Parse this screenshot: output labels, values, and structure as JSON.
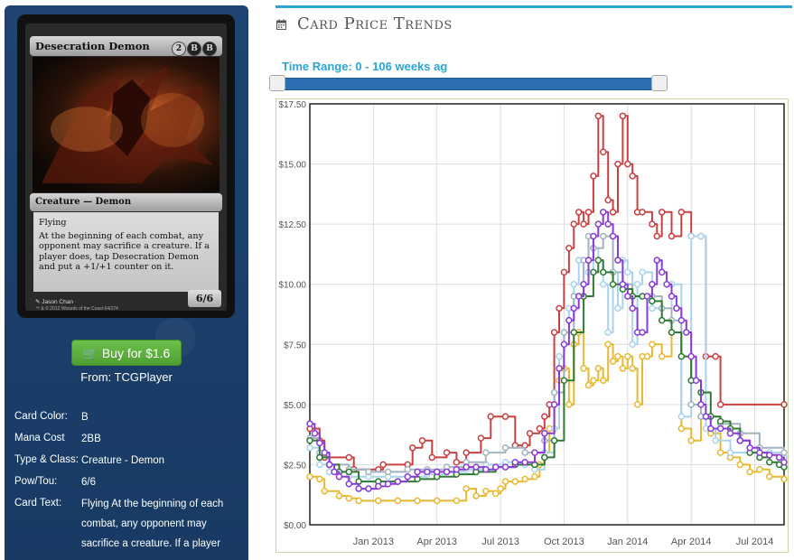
{
  "card": {
    "name": "Desecration Demon",
    "mana_symbols": [
      "2",
      "B",
      "B"
    ],
    "type_line": "Creature — Demon",
    "rules_text": [
      "Flying",
      "At the beginning of each combat, any opponent may sacrifice a creature. If a player does, tap Desecration Demon and put a +1/+1 counter on it."
    ],
    "power_toughness": "6/6",
    "artist": "Jason Chan",
    "copyright": "™ & © 2012 Wizards of the Coast 64/274"
  },
  "buy": {
    "label": "Buy for $1.6",
    "from": "From: TCGPlayer"
  },
  "info": [
    {
      "key": "Card Color:",
      "value": "B"
    },
    {
      "key": "Mana Cost",
      "value": "2BB"
    },
    {
      "key": "Type & Class:",
      "value": "Creature - Demon"
    },
    {
      "key": "Pow/Tou:",
      "value": "6/6"
    },
    {
      "key": "Card Text:",
      "value": "Flying At the beginning of each combat, any opponent may sacrifice a creature. If a player"
    }
  ],
  "section_title": "Card Price Trends",
  "time_range": {
    "label": "Time Range: 0 - 106 weeks ag",
    "min_weeks": 0,
    "max_weeks": 106
  },
  "chart_data": {
    "type": "line",
    "title": "",
    "xlabel": "",
    "ylabel": "",
    "ylim": [
      0,
      17.5
    ],
    "y_ticks": [
      "$0.00",
      "$2.50",
      "$5.00",
      "$7.50",
      "$10.00",
      "$12.50",
      "$15.00",
      "$17.50"
    ],
    "y_tick_values": [
      0,
      2.5,
      5,
      7.5,
      10,
      12.5,
      15,
      17.5
    ],
    "x_ticks": [
      "Jan 2013",
      "Apr 2013",
      "Jul 2013",
      "Oct 2013",
      "Jan 2014",
      "Apr 2014",
      "Jul 2014"
    ],
    "x_tick_weeks": [
      13,
      26,
      39,
      52,
      65,
      78,
      91
    ],
    "xlim_weeks": [
      0,
      97
    ],
    "grid": true,
    "colors": {
      "red": "#c94040",
      "yellow": "#e8b830",
      "lightblue": "#a8d4ee",
      "gray": "#9fb4c0",
      "green": "#2e7a32",
      "purple": "#8a3ad8"
    },
    "series": [
      {
        "color": "red",
        "points": [
          [
            0,
            4.0
          ],
          [
            2,
            3.5
          ],
          [
            3,
            2.8
          ],
          [
            8,
            2.8
          ],
          [
            9,
            2.3
          ],
          [
            14,
            2.3
          ],
          [
            15,
            2.5
          ],
          [
            20,
            2.5
          ],
          [
            21,
            3.2
          ],
          [
            23,
            3.5
          ],
          [
            25,
            2.8
          ],
          [
            28,
            3.0
          ],
          [
            30,
            2.6
          ],
          [
            32,
            3.0
          ],
          [
            35,
            3.6
          ],
          [
            37,
            4.5
          ],
          [
            40,
            4.5
          ],
          [
            42,
            3.3
          ],
          [
            44,
            3.3
          ],
          [
            45,
            3.8
          ],
          [
            47,
            4.0
          ],
          [
            48,
            4.5
          ],
          [
            49,
            5.0
          ],
          [
            50,
            8.0
          ],
          [
            51,
            9.0
          ],
          [
            52,
            10.5
          ],
          [
            53,
            11.5
          ],
          [
            54,
            12.5
          ],
          [
            55,
            13.0
          ],
          [
            56,
            12.5
          ],
          [
            57,
            13.0
          ],
          [
            58,
            14.5
          ],
          [
            59,
            17.0
          ],
          [
            60,
            15.5
          ],
          [
            61,
            13.5
          ],
          [
            62,
            13.0
          ],
          [
            63,
            15.0
          ],
          [
            64,
            17.0
          ],
          [
            65,
            15.0
          ],
          [
            66,
            14.5
          ],
          [
            67,
            13.0
          ],
          [
            68,
            13.0
          ],
          [
            70,
            12.5
          ],
          [
            71,
            12.0
          ],
          [
            72,
            13.0
          ],
          [
            74,
            12.0
          ],
          [
            76,
            13.0
          ],
          [
            78,
            12.0
          ],
          [
            80,
            12.0
          ],
          [
            81,
            7.0
          ],
          [
            83,
            7.0
          ],
          [
            84,
            5.0
          ],
          [
            97,
            5.0
          ]
        ]
      },
      {
        "color": "yellow",
        "points": [
          [
            0,
            2.0
          ],
          [
            2,
            1.9
          ],
          [
            3,
            1.4
          ],
          [
            6,
            1.2
          ],
          [
            8,
            1.1
          ],
          [
            10,
            1.0
          ],
          [
            14,
            1.0
          ],
          [
            18,
            1.0
          ],
          [
            22,
            1.0
          ],
          [
            26,
            1.0
          ],
          [
            30,
            1.0
          ],
          [
            32,
            1.5
          ],
          [
            34,
            1.2
          ],
          [
            36,
            1.4
          ],
          [
            38,
            1.3
          ],
          [
            39,
            1.5
          ],
          [
            40,
            1.8
          ],
          [
            42,
            1.8
          ],
          [
            44,
            1.9
          ],
          [
            46,
            2.0
          ],
          [
            47,
            2.5
          ],
          [
            48,
            3.0
          ],
          [
            49,
            4.0
          ],
          [
            50,
            5.0
          ],
          [
            51,
            6.0
          ],
          [
            52,
            6.5
          ],
          [
            53,
            5.0
          ],
          [
            54,
            7.5
          ],
          [
            55,
            8.0
          ],
          [
            56,
            6.5
          ],
          [
            57,
            5.8
          ],
          [
            58,
            6.0
          ],
          [
            59,
            6.5
          ],
          [
            60,
            6.0
          ],
          [
            61,
            7.5
          ],
          [
            62,
            6.8
          ],
          [
            63,
            7.0
          ],
          [
            64,
            6.5
          ],
          [
            65,
            7.0
          ],
          [
            66,
            6.5
          ],
          [
            67,
            5.0
          ],
          [
            68,
            7.0
          ],
          [
            69,
            7.0
          ],
          [
            70,
            7.5
          ],
          [
            72,
            7.0
          ],
          [
            74,
            8.0
          ],
          [
            76,
            4.0
          ],
          [
            78,
            3.5
          ],
          [
            80,
            4.5
          ],
          [
            82,
            3.8
          ],
          [
            84,
            3.0
          ],
          [
            86,
            2.8
          ],
          [
            88,
            2.5
          ],
          [
            90,
            2.2
          ],
          [
            92,
            2.3
          ],
          [
            94,
            2.0
          ],
          [
            97,
            1.9
          ]
        ]
      },
      {
        "color": "lightblue",
        "points": [
          [
            0,
            3.2
          ],
          [
            2,
            2.5
          ],
          [
            4,
            2.2
          ],
          [
            8,
            2.0
          ],
          [
            12,
            2.0
          ],
          [
            16,
            2.0
          ],
          [
            20,
            2.0
          ],
          [
            24,
            2.1
          ],
          [
            28,
            2.2
          ],
          [
            32,
            2.3
          ],
          [
            36,
            2.5
          ],
          [
            40,
            2.6
          ],
          [
            44,
            2.5
          ],
          [
            46,
            2.3
          ],
          [
            48,
            3.0
          ],
          [
            50,
            4.0
          ],
          [
            51,
            7.0
          ],
          [
            52,
            8.0
          ],
          [
            53,
            9.0
          ],
          [
            54,
            10.0
          ],
          [
            55,
            11.0
          ],
          [
            56,
            10.0
          ],
          [
            57,
            10.5
          ],
          [
            58,
            11.5
          ],
          [
            59,
            11.0
          ],
          [
            60,
            10.0
          ],
          [
            61,
            8.0
          ],
          [
            62,
            10.5
          ],
          [
            63,
            9.0
          ],
          [
            64,
            11.0
          ],
          [
            65,
            10.5
          ],
          [
            66,
            7.5
          ],
          [
            67,
            10.0
          ],
          [
            68,
            10.5
          ],
          [
            70,
            9.0
          ],
          [
            72,
            8.5
          ],
          [
            74,
            10.0
          ],
          [
            76,
            4.5
          ],
          [
            78,
            12.0
          ],
          [
            80,
            12.0
          ],
          [
            81,
            4.0
          ],
          [
            83,
            3.5
          ],
          [
            86,
            3.0
          ],
          [
            90,
            3.0
          ],
          [
            94,
            3.0
          ],
          [
            97,
            2.8
          ]
        ]
      },
      {
        "color": "gray",
        "points": [
          [
            0,
            3.6
          ],
          [
            2,
            3.0
          ],
          [
            4,
            2.5
          ],
          [
            8,
            2.3
          ],
          [
            12,
            2.2
          ],
          [
            16,
            2.2
          ],
          [
            20,
            2.3
          ],
          [
            24,
            2.3
          ],
          [
            28,
            2.4
          ],
          [
            32,
            2.6
          ],
          [
            36,
            3.0
          ],
          [
            40,
            3.2
          ],
          [
            44,
            3.0
          ],
          [
            48,
            3.5
          ],
          [
            50,
            5.5
          ],
          [
            52,
            8.0
          ],
          [
            54,
            9.5
          ],
          [
            56,
            11.0
          ],
          [
            57,
            12.0
          ],
          [
            58,
            11.5
          ],
          [
            60,
            12.0
          ],
          [
            62,
            10.5
          ],
          [
            64,
            10.0
          ],
          [
            66,
            9.5
          ],
          [
            68,
            9.5
          ],
          [
            70,
            9.5
          ],
          [
            72,
            9.0
          ],
          [
            74,
            8.5
          ],
          [
            76,
            7.0
          ],
          [
            78,
            5.0
          ],
          [
            80,
            4.5
          ],
          [
            84,
            4.2
          ],
          [
            88,
            3.8
          ],
          [
            92,
            3.2
          ],
          [
            97,
            3.0
          ]
        ]
      },
      {
        "color": "green",
        "points": [
          [
            0,
            3.5
          ],
          [
            2,
            2.8
          ],
          [
            4,
            2.5
          ],
          [
            6,
            2.2
          ],
          [
            8,
            2.2
          ],
          [
            10,
            1.8
          ],
          [
            14,
            1.8
          ],
          [
            18,
            1.8
          ],
          [
            22,
            1.9
          ],
          [
            26,
            2.0
          ],
          [
            30,
            2.1
          ],
          [
            34,
            2.2
          ],
          [
            38,
            2.4
          ],
          [
            42,
            2.5
          ],
          [
            46,
            2.5
          ],
          [
            48,
            2.8
          ],
          [
            50,
            3.5
          ],
          [
            52,
            6.0
          ],
          [
            54,
            8.0
          ],
          [
            56,
            9.5
          ],
          [
            58,
            10.5
          ],
          [
            59,
            11.0
          ],
          [
            60,
            10.5
          ],
          [
            62,
            10.0
          ],
          [
            64,
            9.8
          ],
          [
            66,
            9.5
          ],
          [
            68,
            9.5
          ],
          [
            70,
            9.3
          ],
          [
            72,
            8.5
          ],
          [
            74,
            8.0
          ],
          [
            76,
            7.0
          ],
          [
            78,
            6.0
          ],
          [
            80,
            5.5
          ],
          [
            82,
            4.5
          ],
          [
            84,
            4.3
          ],
          [
            86,
            4.0
          ],
          [
            88,
            3.5
          ],
          [
            90,
            3.0
          ],
          [
            92,
            2.8
          ],
          [
            94,
            2.6
          ],
          [
            96,
            2.5
          ],
          [
            97,
            2.4
          ]
        ]
      },
      {
        "color": "purple",
        "points": [
          [
            0,
            4.2
          ],
          [
            1,
            3.8
          ],
          [
            2,
            3.4
          ],
          [
            3,
            3.0
          ],
          [
            4,
            2.5
          ],
          [
            5,
            2.2
          ],
          [
            6,
            2.0
          ],
          [
            8,
            1.7
          ],
          [
            10,
            1.5
          ],
          [
            12,
            1.5
          ],
          [
            14,
            1.6
          ],
          [
            16,
            1.7
          ],
          [
            18,
            1.8
          ],
          [
            20,
            2.0
          ],
          [
            22,
            2.2
          ],
          [
            24,
            2.2
          ],
          [
            26,
            2.2
          ],
          [
            28,
            2.2
          ],
          [
            30,
            2.3
          ],
          [
            32,
            2.4
          ],
          [
            34,
            2.4
          ],
          [
            36,
            2.3
          ],
          [
            38,
            2.4
          ],
          [
            40,
            2.4
          ],
          [
            42,
            2.6
          ],
          [
            44,
            2.6
          ],
          [
            46,
            3.0
          ],
          [
            48,
            3.8
          ],
          [
            50,
            5.0
          ],
          [
            51,
            6.5
          ],
          [
            52,
            7.5
          ],
          [
            53,
            8.5
          ],
          [
            54,
            9.0
          ],
          [
            55,
            9.5
          ],
          [
            56,
            10.0
          ],
          [
            57,
            11.0
          ],
          [
            58,
            12.0
          ],
          [
            59,
            12.5
          ],
          [
            60,
            13.0
          ],
          [
            61,
            12.5
          ],
          [
            62,
            12.0
          ],
          [
            63,
            11.0
          ],
          [
            64,
            10.0
          ],
          [
            65,
            9.5
          ],
          [
            66,
            9.0
          ],
          [
            67,
            8.0
          ],
          [
            68,
            8.0
          ],
          [
            69,
            9.5
          ],
          [
            70,
            10.0
          ],
          [
            71,
            11.0
          ],
          [
            72,
            10.5
          ],
          [
            73,
            10.0
          ],
          [
            74,
            9.5
          ],
          [
            75,
            9.0
          ],
          [
            76,
            8.5
          ],
          [
            77,
            8.0
          ],
          [
            78,
            7.0
          ],
          [
            79,
            6.0
          ],
          [
            80,
            5.0
          ],
          [
            81,
            4.5
          ],
          [
            82,
            4.0
          ],
          [
            84,
            4.0
          ],
          [
            86,
            3.8
          ],
          [
            88,
            3.5
          ],
          [
            90,
            3.2
          ],
          [
            92,
            3.0
          ],
          [
            94,
            2.9
          ],
          [
            96,
            2.8
          ],
          [
            97,
            2.6
          ]
        ]
      }
    ]
  }
}
